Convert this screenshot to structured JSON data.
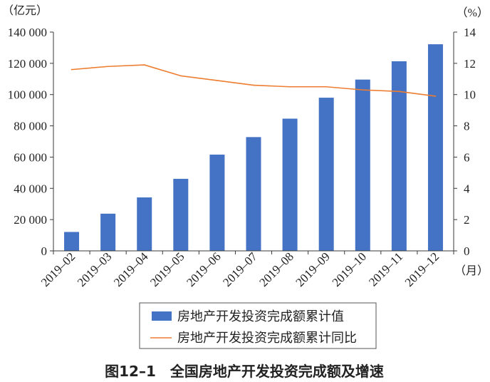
{
  "chart_data": {
    "type": "bar",
    "title": "图12–1　全国房地产开发投资完成额及增速",
    "categories": [
      "2019–02",
      "2019–03",
      "2019–04",
      "2019–05",
      "2019–06",
      "2019–07",
      "2019–08",
      "2019–09",
      "2019–10",
      "2019–11",
      "2019–12"
    ],
    "series": [
      {
        "name": "房地产开发投资完成额累计值",
        "type": "bar",
        "axis": "left",
        "values": [
          12100,
          23800,
          34200,
          46100,
          61600,
          72800,
          84600,
          98000,
          109600,
          121300,
          132200
        ]
      },
      {
        "name": "房地产开发投资完成额累计同比",
        "type": "line",
        "axis": "right",
        "values": [
          11.6,
          11.8,
          11.9,
          11.2,
          10.9,
          10.6,
          10.5,
          10.5,
          10.3,
          10.2,
          9.9
        ]
      }
    ],
    "y_left": {
      "unit_label": "（亿元）",
      "ylim": [
        0,
        140000
      ],
      "ticks": [
        0,
        20000,
        40000,
        60000,
        80000,
        100000,
        120000,
        140000
      ],
      "tick_labels": [
        "0",
        "20 000",
        "40 000",
        "60 000",
        "80 000",
        "100 000",
        "120 000",
        "140 000"
      ]
    },
    "y_right": {
      "unit_label": "（%）",
      "ylim": [
        0,
        14
      ],
      "ticks": [
        0,
        2,
        4,
        6,
        8,
        10,
        12,
        14
      ],
      "tick_labels": [
        "0",
        "2",
        "4",
        "6",
        "8",
        "10",
        "12",
        "14"
      ]
    },
    "x_unit_label": "（月）",
    "grid": false,
    "legend": "bottom",
    "colors": {
      "bar": "#4472C4",
      "line": "#ED7D31",
      "axis": "#3A3A3A"
    }
  }
}
